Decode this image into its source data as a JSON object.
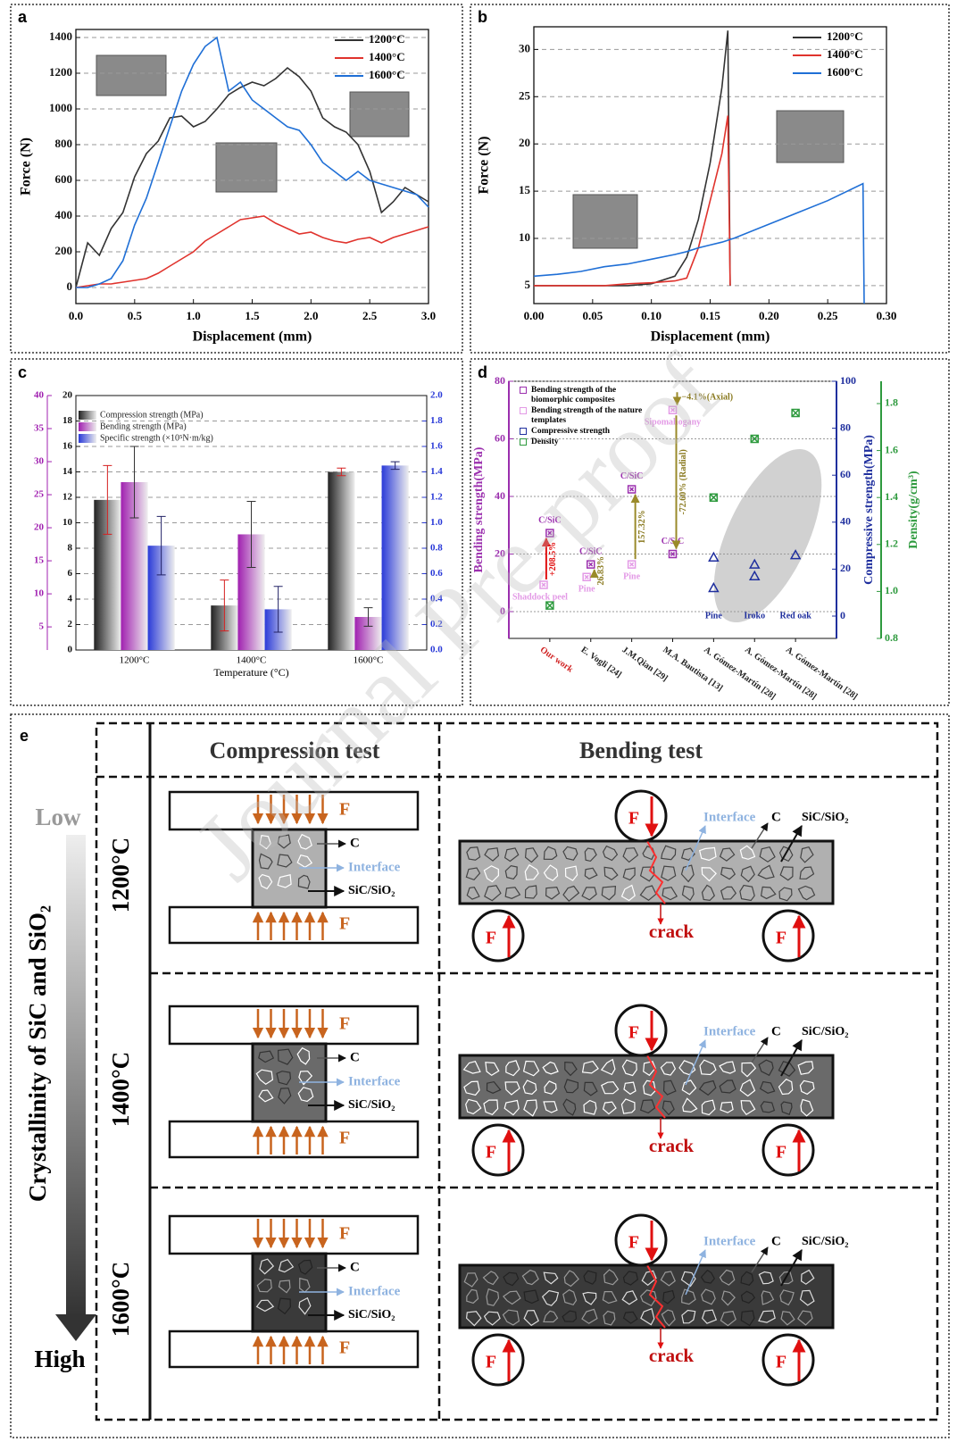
{
  "chart_data": [
    {
      "panel": "a",
      "type": "line",
      "xlabel": "Displacement (mm)",
      "ylabel": "Force (N)",
      "xlim": [
        0,
        3
      ],
      "ylim": [
        -90,
        1445
      ],
      "xticks": [
        {
          "value": 0,
          "label": "0.0"
        },
        0.5,
        {
          "value": 1,
          "label": "1.0"
        },
        1.5,
        {
          "value": 2,
          "label": "2.0"
        },
        2.5,
        {
          "value": 3,
          "label": "3.0"
        }
      ],
      "yticks": [
        0,
        200,
        400,
        600,
        800,
        1000,
        1200,
        1400
      ],
      "grid": true,
      "legend": "upper right",
      "x": [
        0,
        0.1,
        0.2,
        0.3,
        0.4,
        0.5,
        0.6,
        0.7,
        0.8,
        0.9,
        1.0,
        1.1,
        1.2,
        1.3,
        1.4,
        1.5,
        1.6,
        1.7,
        1.8,
        1.9,
        2.0,
        2.1,
        2.2,
        2.3,
        2.4,
        2.5,
        2.6,
        2.7,
        2.8,
        2.9,
        3.0
      ],
      "series": [
        {
          "name": "1200°C",
          "color": "#333333",
          "values": [
            0,
            250,
            180,
            330,
            420,
            620,
            750,
            820,
            950,
            960,
            900,
            930,
            1000,
            1080,
            1120,
            1150,
            1130,
            1170,
            1230,
            1180,
            1100,
            950,
            900,
            870,
            800,
            650,
            420,
            480,
            560,
            520,
            480
          ]
        },
        {
          "name": "1400°C",
          "color": "#e0332d",
          "values": [
            0,
            10,
            20,
            20,
            30,
            40,
            50,
            80,
            120,
            160,
            200,
            260,
            300,
            340,
            380,
            390,
            400,
            360,
            330,
            300,
            310,
            280,
            260,
            250,
            270,
            280,
            250,
            280,
            300,
            320,
            340
          ]
        },
        {
          "name": "1600°C",
          "color": "#1f6fd6",
          "values": [
            0,
            0,
            20,
            50,
            150,
            350,
            500,
            700,
            900,
            1100,
            1250,
            1350,
            1400,
            1100,
            1150,
            1050,
            1000,
            950,
            900,
            880,
            800,
            700,
            650,
            600,
            650,
            600,
            580,
            560,
            540,
            520,
            450
          ]
        }
      ]
    },
    {
      "panel": "b",
      "type": "line",
      "xlabel": "Displacement (mm)",
      "ylabel": "Force (N)",
      "xlim": [
        0,
        0.3
      ],
      "ylim": [
        3.1,
        32.4
      ],
      "xticks": [
        {
          "value": 0,
          "label": "0.00"
        },
        0.05,
        {
          "value": 0.1,
          "label": "0.10"
        },
        0.15,
        {
          "value": 0.2,
          "label": "0.20"
        },
        0.25,
        {
          "value": 0.3,
          "label": "0.30"
        }
      ],
      "yticks": [
        5,
        10,
        15,
        20,
        25,
        30
      ],
      "grid": true,
      "legend": "upper right",
      "x": [
        0,
        0.02,
        0.04,
        0.06,
        0.08,
        0.1,
        0.12,
        0.13,
        0.14,
        0.15,
        0.16,
        0.165,
        0.167,
        0.17,
        0.2,
        0.25,
        0.28,
        0.281
      ],
      "series": [
        {
          "name": "1200°C",
          "color": "#333333",
          "values": [
            5,
            5,
            5,
            5,
            5,
            5.2,
            6,
            8,
            12,
            18,
            26,
            32,
            5,
            null,
            null,
            null,
            null,
            null
          ]
        },
        {
          "name": "1400°C",
          "color": "#e0332d",
          "values": [
            5,
            5,
            5,
            5,
            5.2,
            5.3,
            5.5,
            5.8,
            9,
            14,
            19,
            23,
            5,
            null,
            null,
            null,
            null,
            null
          ]
        },
        {
          "name": "1600°C",
          "color": "#1f6fd6",
          "values": [
            6,
            6.2,
            6.5,
            7,
            7.3,
            7.8,
            8.3,
            8.6,
            9,
            9.3,
            9.6,
            9.8,
            9.9,
            10,
            11.5,
            14,
            15.8,
            3.1
          ]
        }
      ]
    },
    {
      "panel": "c",
      "type": "bar",
      "xlabel": "Temperature (°C)",
      "categories": [
        "1200°C",
        "1400°C",
        "1600°C"
      ],
      "ylim": [
        0,
        20
      ],
      "yticks": [
        0,
        2,
        4,
        6,
        8,
        10,
        12,
        14,
        16,
        18,
        20
      ],
      "y2lim": [
        0,
        2
      ],
      "y2ticks": [
        {
          "value": 0,
          "label": "0.0"
        },
        0.2,
        0.4,
        0.6,
        0.8,
        {
          "value": 1,
          "label": "1.0"
        },
        1.2,
        1.4,
        1.6,
        1.8,
        {
          "value": 2,
          "label": "2.0"
        }
      ],
      "y3lim": [
        1.5,
        40
      ],
      "y3ticks": [
        5,
        10,
        15,
        20,
        25,
        30,
        35,
        40
      ],
      "grid": true,
      "legend": "upper left",
      "series": [
        {
          "name": "Compression strength (MPa)",
          "color": "#222222",
          "axis": "y",
          "values": [
            11.8,
            3.5,
            14
          ],
          "errors": [
            2.7,
            2.0,
            0.3
          ],
          "error_color": "#d62020"
        },
        {
          "name": "Bending strength (MPa)",
          "color": "#a020b0",
          "axis": "y3",
          "values": [
            26.9,
            19,
            6.5
          ],
          "errors": [
            5.4,
            5,
            1.4
          ],
          "error_color": "#333333"
        },
        {
          "name": "Specific strength (×10⁵N·m/kg)",
          "color": "#2a3ad8",
          "axis": "y2",
          "values": [
            0.82,
            0.32,
            1.45
          ],
          "errors": [
            0.23,
            0.18,
            0.03
          ],
          "error_color": "#222266"
        }
      ]
    },
    {
      "panel": "d",
      "type": "scatter",
      "ylabel": "Bending strength(MPa)",
      "y2label": "Compressive strength(MPa)",
      "y3label": "Density(g/cm³)",
      "xlim": [
        0,
        8
      ],
      "xticks": [
        {
          "value": 1,
          "label": "Our work"
        },
        {
          "value": 2,
          "label": "E. Vogli [24]"
        },
        {
          "value": 3,
          "label": "J.M.Qian [29]"
        },
        {
          "value": 4,
          "label": "M.A. Bautista [13]"
        },
        {
          "value": 5,
          "label": "A. Gómez-Martín [28]"
        },
        {
          "value": 6,
          "label": "A. Gómez-Martín [28]"
        },
        {
          "value": 7,
          "label": "A. Gómez-Martín [28]"
        }
      ],
      "ylim": [
        -9.3,
        80
      ],
      "yticks": [
        0,
        20,
        40,
        60,
        80
      ],
      "y2lim": [
        -9.5,
        100
      ],
      "y2ticks": [
        0,
        20,
        40,
        60,
        80,
        100
      ],
      "y3lim": [
        0.8,
        1.895
      ],
      "y3ticks": [
        0.8,
        {
          "value": 1,
          "label": "1.0"
        },
        1.2,
        1.4,
        1.6,
        1.8
      ],
      "grid": true,
      "legend": "upper left",
      "series": [
        {
          "name": "Bending strength of the biomorphic composites",
          "color": "#9b2fae",
          "marker": "square",
          "axis": "y",
          "x": [
            1,
            2,
            3,
            4
          ],
          "values": [
            27.3,
            16.4,
            42.5,
            20
          ],
          "point_labels": [
            "C/SiC",
            "C/SiC",
            "C/SiC",
            "C/SiC"
          ]
        },
        {
          "name": "Bending strength of the nature templates",
          "color": "#e39ae6",
          "marker": "square",
          "axis": "y",
          "x": [
            0.85,
            1.9,
            3,
            4
          ],
          "values": [
            9.3,
            12,
            16.4,
            70
          ],
          "point_labels": [
            "Shaddock peel",
            "Pine",
            "Pine",
            "Sipomahogany"
          ]
        },
        {
          "name": "Compressive strength",
          "color": "#1f2f9e",
          "marker": "triangle",
          "axis": "y2",
          "x": [
            5,
            5,
            6,
            6,
            7
          ],
          "values": [
            25,
            12,
            22,
            17,
            26
          ],
          "point_labels": [
            null,
            "Pine",
            null,
            "Iroko",
            "Red oak"
          ]
        },
        {
          "name": "Density",
          "color": "#2e9a3e",
          "marker": "circle",
          "axis": "y3",
          "x": [
            1,
            5,
            6,
            7
          ],
          "values": [
            0.94,
            1.4,
            1.65,
            1.76
          ]
        }
      ],
      "change_labels": [
        "+208.5%",
        "26.83%",
        "157.32%",
        "-72.60% (Radial)"
      ],
      "annotation": "−4.1%(Axial)"
    }
  ],
  "diagram": {
    "panel": "e",
    "headers": [
      "Compression test",
      "Bending test"
    ],
    "axis_label": "Crystallinity of SiC and SiO₂",
    "low": "Low",
    "high": "High",
    "rows": [
      "1200°C",
      "1400°C",
      "1600°C"
    ],
    "labels": {
      "force": "F",
      "carbon": "C",
      "interface": "Interface",
      "phase": "SiC/SiO₂",
      "crack": "crack"
    }
  },
  "watermark": "Journal Pre-proof"
}
